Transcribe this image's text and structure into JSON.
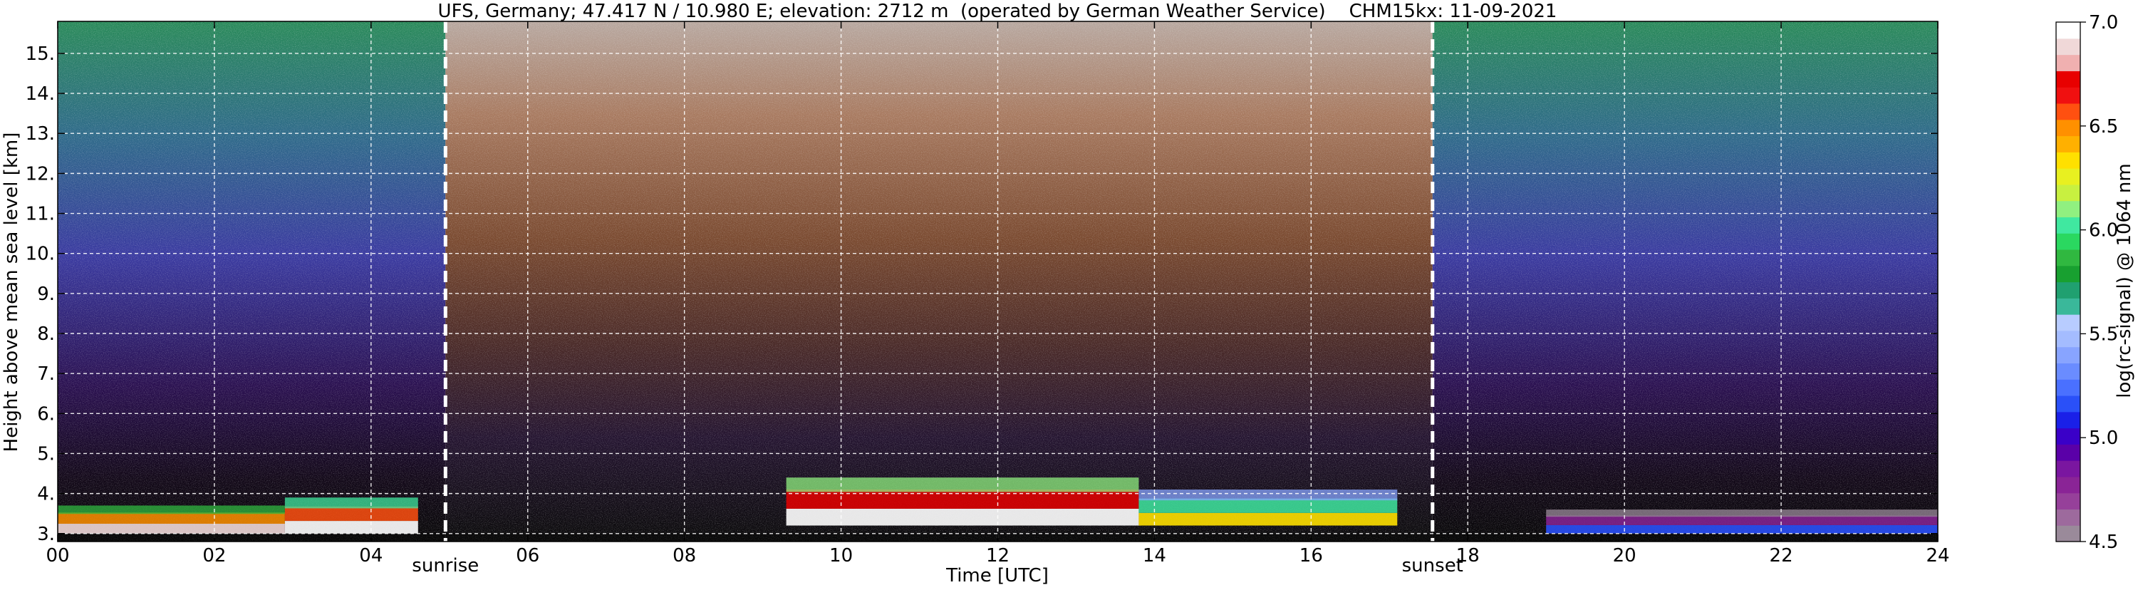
{
  "chart_data": {
    "type": "heatmap",
    "title": "UFS, Germany; 47.417 N / 10.980 E; elevation: 2712 m  (operated by German Weather Service)    CHM15kx: 11-09-2021",
    "xlabel": "Time [UTC]",
    "ylabel": "Height above mean sea level [km]",
    "xlim": [
      0,
      24
    ],
    "ylim": [
      2.8,
      15.8
    ],
    "x_ticks": [
      0,
      2,
      4,
      6,
      8,
      10,
      12,
      14,
      16,
      18,
      20,
      22,
      24
    ],
    "x_tick_labels": [
      "00",
      "02",
      "04",
      "06",
      "08",
      "10",
      "12",
      "14",
      "16",
      "18",
      "20",
      "22",
      "24"
    ],
    "y_ticks": [
      3,
      4,
      5,
      6,
      7,
      8,
      9,
      10,
      11,
      12,
      13,
      14,
      15
    ],
    "y_tick_labels": [
      "3.",
      "4.",
      "5.",
      "6.",
      "7.",
      "8.",
      "9.",
      "10.",
      "11.",
      "12.",
      "13.",
      "14.",
      "15."
    ],
    "grid": true,
    "events": [
      {
        "label": "sunrise",
        "time": 4.95
      },
      {
        "label": "sunset",
        "time": 17.55
      }
    ],
    "colorbar": {
      "label": "log(rc-signal) @ 1064 nm",
      "range": [
        4.5,
        7.0
      ],
      "ticks": [
        4.5,
        5.0,
        5.5,
        6.0,
        6.5,
        7.0
      ],
      "tick_labels": [
        "4.5",
        "5.0",
        "5.5",
        "6.0",
        "6.5",
        "7.0"
      ],
      "colors": [
        "#9a8a9a",
        "#9d6a9d",
        "#96409a",
        "#8a2496",
        "#7a16a0",
        "#5a00a8",
        "#3a00c8",
        "#1a20e8",
        "#2a50f8",
        "#4a70ff",
        "#6a8cff",
        "#88a4ff",
        "#a4bcff",
        "#b8ccff",
        "#3ab89a",
        "#20a070",
        "#18a030",
        "#30b840",
        "#2ad860",
        "#40e8a0",
        "#90f080",
        "#c8f040",
        "#e8f020",
        "#ffe000",
        "#ffb000",
        "#ff9000",
        "#ff5010",
        "#f01010",
        "#e80000",
        "#f0b0b0",
        "#f0d8d8",
        "#ffffff"
      ]
    },
    "features": [
      {
        "desc": "layer",
        "t0": 0,
        "t1": 2.9,
        "h0": 3.0,
        "h1": 3.7,
        "level": 6.5
      },
      {
        "desc": "layer",
        "t0": 2.9,
        "t1": 4.6,
        "h0": 3.0,
        "h1": 3.9,
        "level": 6.6
      },
      {
        "desc": "layer",
        "t0": 9.3,
        "t1": 13.8,
        "h0": 3.2,
        "h1": 4.4,
        "level": 6.7
      },
      {
        "desc": "layer",
        "t0": 13.8,
        "t1": 17.1,
        "h0": 3.2,
        "h1": 4.1,
        "level": 6.0
      },
      {
        "desc": "layer",
        "t0": 19.0,
        "t1": 24,
        "h0": 3.0,
        "h1": 3.6,
        "level": 4.8
      }
    ]
  }
}
